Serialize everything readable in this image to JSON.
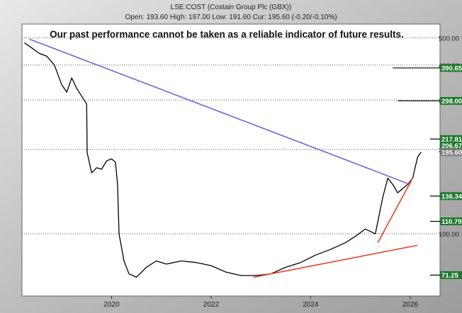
{
  "header": {
    "symbol_line": "LSE:COST (Costain Group Plc (GBX))",
    "ohlc_line": "Open: 193.60 High: 197.00 Low: 191.60 Cur: 195.60 (-0.20/-0.10%)",
    "disclaimer": "Our past performance cannot be taken as a reliable indicator of future results."
  },
  "colors": {
    "frame": "#b8b8b8",
    "price": "#000000",
    "blue_trend": "#6b6bd6",
    "red_trend": "#e8402a",
    "badge_green": "#1f7a2e",
    "badge_gray": "#7a7a7a",
    "grid": "#555555"
  },
  "chart_data": {
    "type": "line",
    "title": "LSE:COST (Costain Group Plc (GBX))",
    "xlabel": "",
    "ylabel": "",
    "scale": "log",
    "ylim": [
      60,
      560
    ],
    "xlim": [
      2018.2,
      2026.6
    ],
    "x_ticks": [
      "2020",
      "2022",
      "2024",
      "2026"
    ],
    "y_ticks": [
      {
        "label": "500.00",
        "value": 500
      },
      {
        "label": "400.00",
        "value": 400
      },
      {
        "label": "300.00",
        "value": 300
      },
      {
        "label": "200.00",
        "value": 200
      },
      {
        "label": "100.00",
        "value": 100
      }
    ],
    "price_series": {
      "name": "",
      "points": [
        [
          2018.25,
          480
        ],
        [
          2018.4,
          460
        ],
        [
          2018.55,
          440
        ],
        [
          2018.7,
          430
        ],
        [
          2018.85,
          400
        ],
        [
          2019.0,
          340
        ],
        [
          2019.1,
          320
        ],
        [
          2019.2,
          360
        ],
        [
          2019.3,
          330
        ],
        [
          2019.45,
          300
        ],
        [
          2019.5,
          290
        ],
        [
          2019.51,
          195
        ],
        [
          2019.6,
          165
        ],
        [
          2019.7,
          172
        ],
        [
          2019.8,
          170
        ],
        [
          2019.9,
          182
        ],
        [
          2020.0,
          185
        ],
        [
          2020.08,
          180
        ],
        [
          2020.12,
          150
        ],
        [
          2020.15,
          100
        ],
        [
          2020.25,
          80
        ],
        [
          2020.35,
          72
        ],
        [
          2020.5,
          70
        ],
        [
          2020.7,
          76
        ],
        [
          2020.9,
          80
        ],
        [
          2021.1,
          78
        ],
        [
          2021.4,
          80
        ],
        [
          2021.7,
          79
        ],
        [
          2022.0,
          77
        ],
        [
          2022.3,
          73
        ],
        [
          2022.6,
          71
        ],
        [
          2022.9,
          71
        ],
        [
          2023.2,
          72
        ],
        [
          2023.5,
          76
        ],
        [
          2023.8,
          79
        ],
        [
          2024.1,
          84
        ],
        [
          2024.4,
          88
        ],
        [
          2024.7,
          93
        ],
        [
          2024.9,
          98
        ],
        [
          2025.1,
          104
        ],
        [
          2025.3,
          100
        ],
        [
          2025.45,
          135
        ],
        [
          2025.55,
          158
        ],
        [
          2025.65,
          150
        ],
        [
          2025.75,
          140
        ],
        [
          2025.85,
          145
        ],
        [
          2025.95,
          150
        ],
        [
          2026.05,
          158
        ],
        [
          2026.15,
          188
        ],
        [
          2026.22,
          195.6
        ]
      ]
    },
    "trendlines": [
      {
        "from": [
          2018.35,
          495
        ],
        "to": [
          2026.0,
          150
        ],
        "color": "blue"
      },
      {
        "from": [
          2022.85,
          70
        ],
        "to": [
          2026.15,
          91
        ],
        "color": "red"
      },
      {
        "from": [
          2025.35,
          93
        ],
        "to": [
          2026.05,
          158
        ],
        "color": "red"
      }
    ],
    "target_lines": [
      {
        "value": 390.65,
        "from": 2025.65,
        "to": 2026.6
      },
      {
        "value": 298.0,
        "from": 2025.75,
        "to": 2026.6
      },
      {
        "value": 217.81,
        "from": 2026.4,
        "to": 2026.6
      },
      {
        "value": 136.34,
        "from": 2026.4,
        "to": 2026.6
      },
      {
        "value": 110.79,
        "from": 2026.4,
        "to": 2026.6
      },
      {
        "value": 71.25,
        "from": 2026.4,
        "to": 2026.6
      }
    ],
    "price_labels": [
      {
        "label": "390.65",
        "value": 390.65,
        "color": "green"
      },
      {
        "label": "298.00",
        "value": 298.0,
        "color": "green"
      },
      {
        "label": "217.81",
        "value": 217.81,
        "color": "green"
      },
      {
        "label": "206.67",
        "value": 206.67,
        "color": "green"
      },
      {
        "label": "195.60",
        "value": 195.6,
        "color": "gray"
      },
      {
        "label": "136.34",
        "value": 136.34,
        "color": "green"
      },
      {
        "label": "110.79",
        "value": 110.79,
        "color": "green"
      },
      {
        "label": "71.25",
        "value": 71.25,
        "color": "green"
      }
    ]
  }
}
